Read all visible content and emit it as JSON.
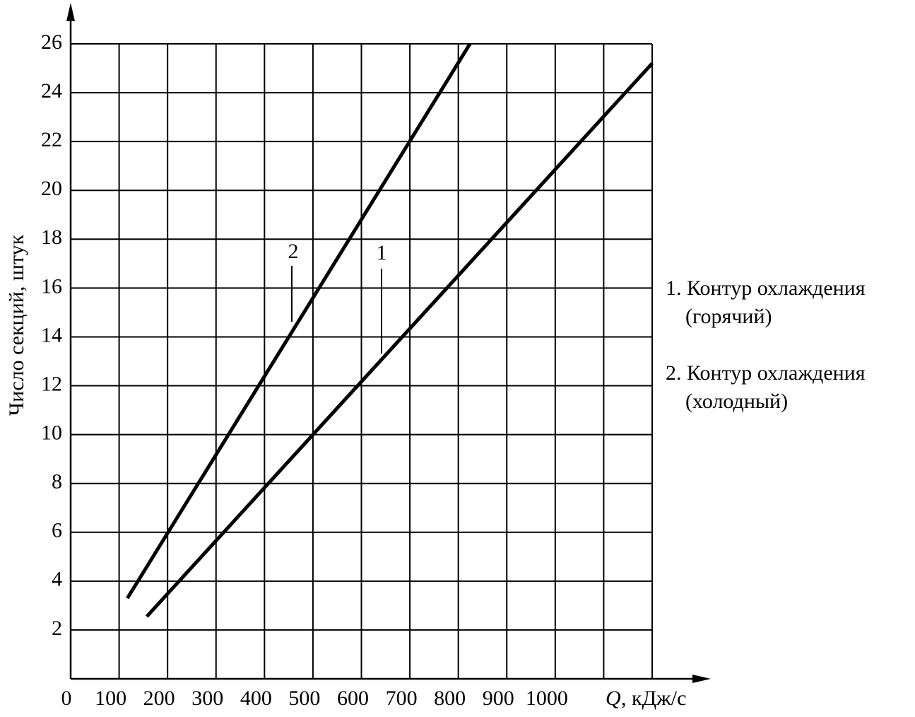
{
  "chart_data": {
    "type": "line",
    "y_label": "Число секций, штук",
    "x_label_symbol": "Q",
    "x_label_unit": ", кДж/с",
    "xlim": [
      0,
      1200
    ],
    "ylim": [
      0,
      26
    ],
    "xticks": [
      0,
      100,
      200,
      300,
      400,
      500,
      600,
      700,
      800,
      900,
      1000
    ],
    "xgrid": [
      1100,
      1200
    ],
    "yticks": [
      2,
      4,
      6,
      8,
      10,
      12,
      14,
      16,
      18,
      20,
      22,
      24,
      26
    ],
    "grid": true,
    "series": [
      {
        "name": "1",
        "color": "#000000",
        "x": [
          157,
          1200
        ],
        "values": [
          2.55,
          25.2
        ]
      },
      {
        "name": "2",
        "color": "#000000",
        "x": [
          117,
          824
        ],
        "values": [
          3.3,
          26
        ]
      }
    ],
    "legend": [
      {
        "title": "1. Контур охлаждения",
        "sub": "(горячий)"
      },
      {
        "title": "2. Контур охлаждения",
        "sub": "(холодный)"
      }
    ]
  }
}
